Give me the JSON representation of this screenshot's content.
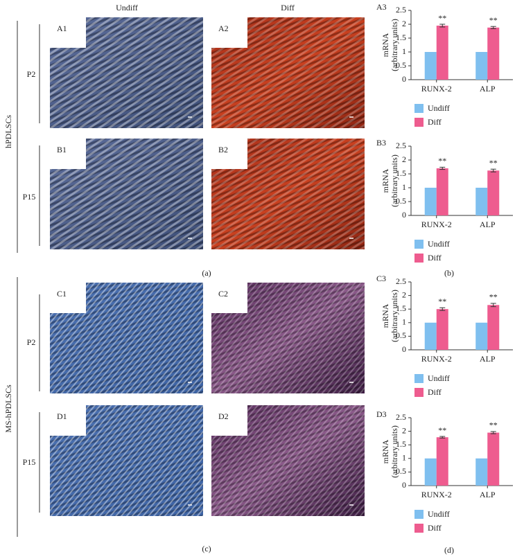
{
  "figure": {
    "column_headers": [
      "Undiff",
      "Diff"
    ],
    "groups": [
      {
        "name": "hPDLSCs",
        "rows": [
          "P2",
          "P15"
        ],
        "caption": "(a)"
      },
      {
        "name": "MS-hPDLSCs",
        "rows": [
          "P2",
          "P15"
        ],
        "caption": "(c)"
      }
    ],
    "images": [
      [
        "A1",
        "A2"
      ],
      [
        "B1",
        "B2"
      ],
      [
        "C1",
        "C2"
      ],
      [
        "D1",
        "D2"
      ]
    ],
    "chart_captions": [
      "(b)",
      "(d)"
    ]
  },
  "chart_data": [
    {
      "type": "bar",
      "label": "A3",
      "ylabel": [
        "mRNA",
        "(arbitrary units)"
      ],
      "categories": [
        "RUNX-2",
        "ALP"
      ],
      "ylim": [
        0,
        2.5
      ],
      "yticks": [
        0,
        0.5,
        1,
        1.5,
        2,
        2.5
      ],
      "series": [
        {
          "name": "Undiff",
          "color": "#7fbfef",
          "values": [
            1,
            1
          ]
        },
        {
          "name": "Diff",
          "color": "#ee5c8f",
          "values": [
            1.95,
            1.88
          ],
          "errors": [
            0.05,
            0.04
          ],
          "annotations": [
            "**",
            "**"
          ]
        }
      ]
    },
    {
      "type": "bar",
      "label": "B3",
      "ylabel": [
        "mRNA",
        "(arbitrary units)"
      ],
      "categories": [
        "RUNX-2",
        "ALP"
      ],
      "ylim": [
        0,
        2.5
      ],
      "yticks": [
        0,
        0.5,
        1,
        1.5,
        2,
        2.5
      ],
      "series": [
        {
          "name": "Undiff",
          "color": "#7fbfef",
          "values": [
            1,
            1
          ]
        },
        {
          "name": "Diff",
          "color": "#ee5c8f",
          "values": [
            1.7,
            1.62
          ],
          "errors": [
            0.04,
            0.05
          ],
          "annotations": [
            "**",
            "**"
          ]
        }
      ]
    },
    {
      "type": "bar",
      "label": "C3",
      "ylabel": [
        "mRNA",
        "(arbitrary units)"
      ],
      "categories": [
        "RUNX-2",
        "ALP"
      ],
      "ylim": [
        0,
        2.5
      ],
      "yticks": [
        0,
        0.5,
        1,
        1.5,
        2,
        2.5
      ],
      "series": [
        {
          "name": "Undiff",
          "color": "#7fbfef",
          "values": [
            1,
            1
          ]
        },
        {
          "name": "Diff",
          "color": "#ee5c8f",
          "values": [
            1.5,
            1.65
          ],
          "errors": [
            0.05,
            0.06
          ],
          "annotations": [
            "**",
            "**"
          ]
        }
      ]
    },
    {
      "type": "bar",
      "label": "D3",
      "ylabel": [
        "mRNA",
        "(arbitrary units)"
      ],
      "categories": [
        "RUNX-2",
        "ALP"
      ],
      "ylim": [
        0,
        2.5
      ],
      "yticks": [
        0,
        0.5,
        1,
        1.5,
        2,
        2.5
      ],
      "series": [
        {
          "name": "Undiff",
          "color": "#7fbfef",
          "values": [
            1,
            1
          ]
        },
        {
          "name": "Diff",
          "color": "#ee5c8f",
          "values": [
            1.78,
            1.95
          ],
          "errors": [
            0.03,
            0.04
          ],
          "annotations": [
            "**",
            "**"
          ]
        }
      ]
    }
  ]
}
